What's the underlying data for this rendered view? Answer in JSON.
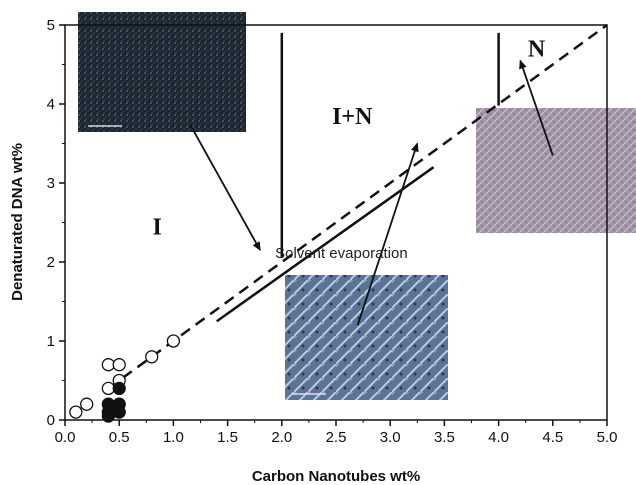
{
  "chart_data": {
    "type": "scatter",
    "xlabel": "Carbon Nanotubes wt%",
    "ylabel": "Denaturated DNA wt%",
    "xlim": [
      0,
      5
    ],
    "ylim": [
      0,
      5
    ],
    "xticks": [
      "0.0",
      "0.5",
      "1.0",
      "1.5",
      "2.0",
      "2.5",
      "3.0",
      "3.5",
      "4.0",
      "4.5",
      "5.0"
    ],
    "yticks": [
      "0",
      "1",
      "2",
      "3",
      "4",
      "5"
    ],
    "grid": false,
    "series": [
      {
        "marker": "open-circle",
        "points": [
          [
            0.1,
            0.1
          ],
          [
            0.2,
            0.2
          ],
          [
            0.4,
            0.4
          ],
          [
            0.4,
            0.7
          ],
          [
            0.5,
            0.7
          ],
          [
            0.5,
            0.5
          ],
          [
            0.8,
            0.8
          ],
          [
            1.0,
            1.0
          ]
        ]
      },
      {
        "marker": "filled-circle",
        "points": [
          [
            0.4,
            0.1
          ],
          [
            0.4,
            0.2
          ],
          [
            0.5,
            0.2
          ],
          [
            0.5,
            0.1
          ],
          [
            0.4,
            0.05
          ],
          [
            0.5,
            0.4
          ]
        ]
      }
    ],
    "lines": [
      {
        "style": "dashed",
        "from": [
          0.4,
          0.4
        ],
        "to": [
          5.0,
          5.0
        ]
      },
      {
        "style": "solid",
        "from": [
          1.4,
          1.25
        ],
        "to": [
          3.4,
          3.2
        ]
      },
      {
        "style": "solid",
        "from": [
          2.0,
          2.05
        ],
        "to": [
          2.0,
          4.9
        ]
      },
      {
        "style": "solid",
        "from": [
          4.0,
          3.98
        ],
        "to": [
          4.0,
          4.9
        ]
      }
    ],
    "regions": [
      {
        "label": "I",
        "x": 0.85,
        "y": 2.35
      },
      {
        "label": "I+N",
        "x": 2.65,
        "y": 3.75
      },
      {
        "label": "N",
        "x": 4.35,
        "y": 4.6
      }
    ],
    "annotations": [
      {
        "text": "Solvent evaporation",
        "x": 2.55,
        "y": 2.05
      }
    ],
    "arrows": [
      {
        "from": [
          1.15,
          3.75
        ],
        "to": [
          1.8,
          2.15
        ]
      },
      {
        "from": [
          2.7,
          1.2
        ],
        "to": [
          3.25,
          3.5
        ]
      },
      {
        "from": [
          4.5,
          3.35
        ],
        "to": [
          4.2,
          4.55
        ]
      }
    ],
    "insets": [
      {
        "name": "isotropic-micrograph",
        "color": "#1d2a33"
      },
      {
        "name": "evaporation-micrograph",
        "color": "#4d6a8a"
      },
      {
        "name": "nematic-micrograph",
        "color": "#9d8ba0"
      }
    ]
  }
}
